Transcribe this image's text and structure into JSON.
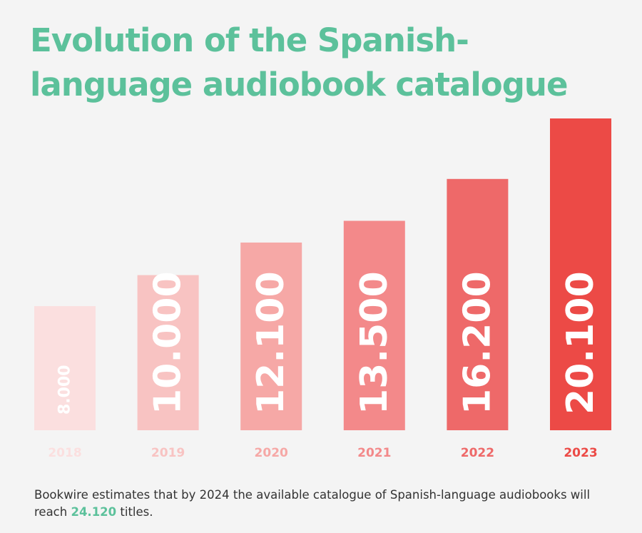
{
  "colors": {
    "background": "#f4f4f4",
    "title": "#5cc19b",
    "highlight": "#5cc19b",
    "bar_text": "#ffffff",
    "bars": [
      "#fbdfdf",
      "#f8c3c2",
      "#f6a8a6",
      "#f3898a",
      "#ee6969",
      "#ec4a46"
    ],
    "year_labels": [
      "#fbdfdf",
      "#f8c3c2",
      "#f6a8a6",
      "#f3898a",
      "#ee6969",
      "#ec4a46"
    ]
  },
  "chart_data": {
    "type": "bar",
    "title": "Evolution of the Spanish-language audiobook catalogue",
    "xlabel": "",
    "ylabel": "",
    "grid": false,
    "legend": "none",
    "categories": [
      "2018",
      "2019",
      "2020",
      "2021",
      "2022",
      "2023"
    ],
    "values": [
      8000,
      10000,
      12100,
      13500,
      16200,
      20100
    ],
    "value_labels": [
      "8.000",
      "10.000",
      "12.100",
      "13.500",
      "16.200",
      "20.100"
    ],
    "ylim": [
      0,
      20100
    ]
  },
  "footnote": {
    "before": "Bookwire estimates that by 2024 the available catalogue of Spanish-language audiobooks will reach ",
    "highlight": "24.120",
    "after": " titles."
  }
}
